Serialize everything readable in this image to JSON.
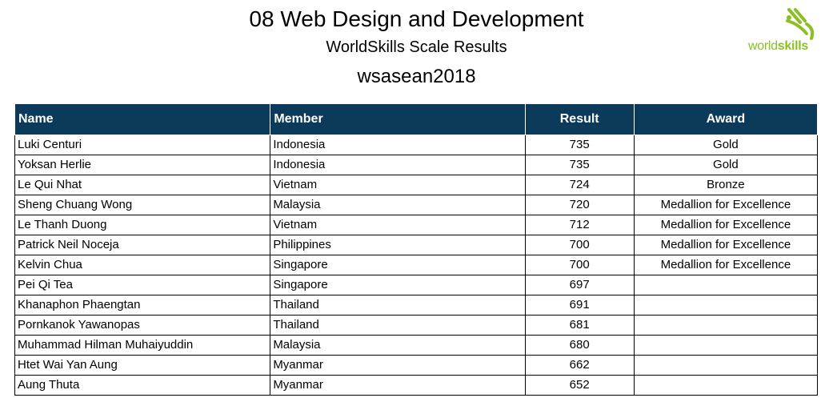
{
  "header": {
    "title": "08 Web Design and Development",
    "subtitle": "WorldSkills Scale Results",
    "event": "wsasean2018"
  },
  "logo": {
    "text_light": "world",
    "text_bold": "skills",
    "color": "#8cbf26"
  },
  "table": {
    "columns": {
      "name": "Name",
      "member": "Member",
      "result": "Result",
      "award": "Award"
    },
    "header_color": "#0b3a5a",
    "rows": [
      {
        "name": "Luki Centuri",
        "member": "Indonesia",
        "result": "735",
        "award": "Gold"
      },
      {
        "name": "Yoksan Herlie",
        "member": "Indonesia",
        "result": "735",
        "award": "Gold"
      },
      {
        "name": "Le Qui Nhat",
        "member": "Vietnam",
        "result": "724",
        "award": "Bronze"
      },
      {
        "name": "Sheng Chuang Wong",
        "member": "Malaysia",
        "result": "720",
        "award": "Medallion for Excellence"
      },
      {
        "name": "Le Thanh Duong",
        "member": "Vietnam",
        "result": "712",
        "award": "Medallion for Excellence"
      },
      {
        "name": "Patrick Neil Noceja",
        "member": "Philippines",
        "result": "700",
        "award": "Medallion for Excellence"
      },
      {
        "name": "Kelvin Chua",
        "member": "Singapore",
        "result": "700",
        "award": "Medallion for Excellence"
      },
      {
        "name": "Pei Qi Tea",
        "member": "Singapore",
        "result": "697",
        "award": ""
      },
      {
        "name": "Khanaphon Phaengtan",
        "member": "Thailand",
        "result": "691",
        "award": ""
      },
      {
        "name": "Pornkanok Yawanopas",
        "member": "Thailand",
        "result": "681",
        "award": ""
      },
      {
        "name": "Muhammad Hilman Muhaiyuddin",
        "member": "Malaysia",
        "result": "680",
        "award": ""
      },
      {
        "name": "Htet Wai Yan Aung",
        "member": "Myanmar",
        "result": "662",
        "award": ""
      },
      {
        "name": "Aung Thuta",
        "member": "Myanmar",
        "result": "652",
        "award": ""
      }
    ]
  }
}
